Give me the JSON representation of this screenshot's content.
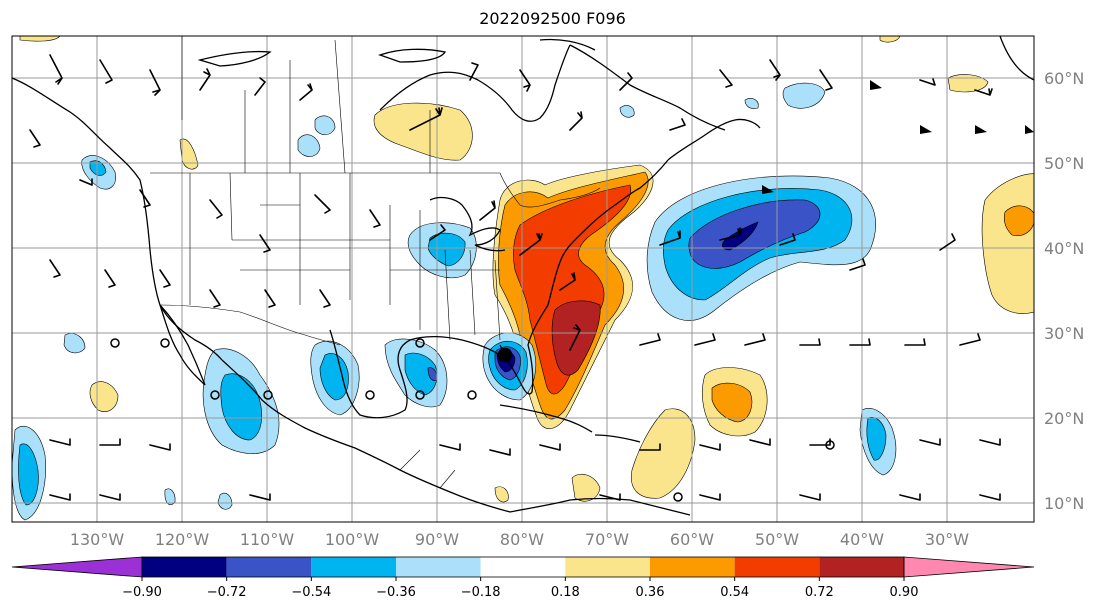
{
  "title": "2022092500 F096",
  "map": {
    "lat_labels": [
      "60°N",
      "50°N",
      "40°N",
      "30°N",
      "20°N",
      "10°N"
    ],
    "lon_labels": [
      "130°W",
      "120°W",
      "110°W",
      "100°W",
      "90°W",
      "80°W",
      "70°W",
      "60°W",
      "50°W",
      "40°W",
      "30°W"
    ],
    "extent": {
      "lon_min": -138,
      "lon_max": -18,
      "lat_min": 8,
      "lat_max": 65
    }
  },
  "colorbar": {
    "labels": [
      "−0.90",
      "−0.72",
      "−0.54",
      "−0.36",
      "−0.18",
      "0.18",
      "0.36",
      "0.54",
      "0.72",
      "0.90"
    ],
    "colors": [
      "#9b30d6",
      "#000080",
      "#3a53c7",
      "#00b4f0",
      "#abe0fa",
      "#ffffff",
      "#fbe58c",
      "#fb9b00",
      "#f33d00",
      "#b22222",
      "#ff88b0"
    ]
  }
}
